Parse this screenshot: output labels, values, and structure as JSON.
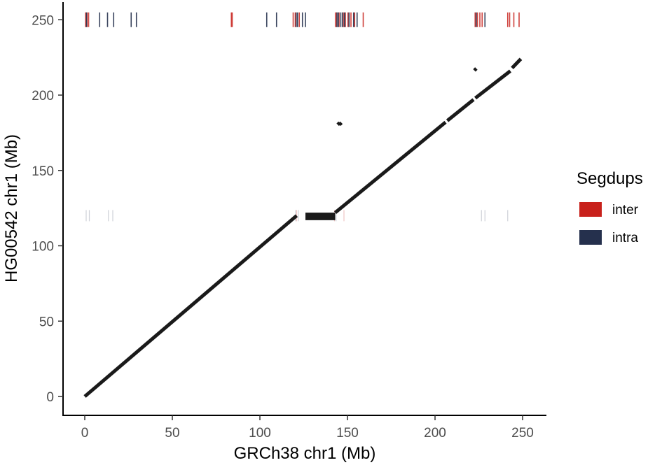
{
  "chart_data": {
    "type": "scatter",
    "xlabel": "GRCh38 chr1 (Mb)",
    "ylabel": "HG00542 chr1 (Mb)",
    "xlim": [
      -10,
      262
    ],
    "ylim": [
      -5,
      260
    ],
    "x_ticks": [
      0,
      50,
      100,
      150,
      200,
      250
    ],
    "y_ticks": [
      0,
      50,
      100,
      150,
      200,
      250
    ],
    "grid": false,
    "legend": {
      "title": "Segdups",
      "position": "right",
      "entries": [
        {
          "name": "inter",
          "color": "#c8211b"
        },
        {
          "name": "intra",
          "color": "#25304d"
        }
      ]
    },
    "alignment_color": "#1a1a1a",
    "alignment_segments": [
      {
        "x": [
          0,
          121
        ],
        "y": [
          0,
          120
        ]
      },
      {
        "x": [
          143,
          206
        ],
        "y": [
          122,
          182
        ]
      },
      {
        "x": [
          207,
          222
        ],
        "y": [
          183,
          197
        ]
      },
      {
        "x": [
          223,
          243
        ],
        "y": [
          198,
          216
        ]
      },
      {
        "x": [
          244,
          249
        ],
        "y": [
          218,
          224
        ]
      }
    ],
    "alignment_blocks": [
      {
        "x": [
          126,
          143
        ],
        "y": [
          117,
          122
        ]
      }
    ],
    "alignment_points": [
      {
        "x": 223,
        "y": 217
      },
      {
        "x": 145,
        "y": 181
      },
      {
        "x": 146,
        "y": 181
      }
    ],
    "segdup_track_y": 250,
    "segdup_lower_track_y": 120,
    "segdups_inter": [
      0.5,
      1.3,
      2.2,
      83.7,
      84.2,
      119.0,
      120.2,
      122.5,
      143.1,
      143.9,
      145.2,
      147.6,
      148.8,
      150.3,
      152.0,
      154.1,
      159.0,
      222.9,
      224.2,
      225.6,
      226.9,
      241.5,
      242.6,
      245.0,
      248.0
    ],
    "segdups_intra": [
      1.0,
      8.5,
      13.0,
      16.5,
      26.5,
      29.5,
      103.9,
      109.5,
      120.7,
      121.5,
      124.3,
      126.0,
      144.0,
      144.8,
      146.2,
      147.2,
      148.3,
      150.9,
      153.5,
      155.5,
      223.5,
      228.5
    ],
    "segdups_lower_inter": [
      121.0,
      142.6,
      148.0
    ],
    "segdups_lower_intra": [
      0.8,
      2.6,
      13.5,
      16.0,
      120.4,
      122.0,
      143.5,
      226.5,
      228.5,
      241.5
    ]
  }
}
